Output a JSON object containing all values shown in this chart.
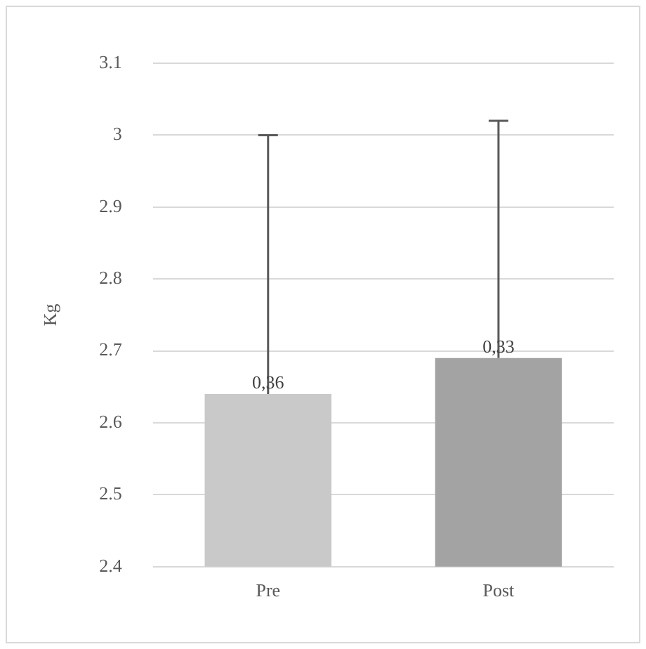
{
  "chart_data": {
    "type": "bar",
    "ylabel": "Kg",
    "categories": [
      "Pre",
      "Post"
    ],
    "values": [
      2.64,
      2.69
    ],
    "colors": [
      "#c9c9c9",
      "#a3a3a3"
    ],
    "errors": [
      [
        2.64,
        3.0
      ],
      [
        2.69,
        3.02
      ]
    ],
    "annotations": [
      {
        "text": "0,36",
        "x": "Pre",
        "y": 2.64
      },
      {
        "text": "0,33",
        "x": "Post",
        "y": 2.69
      }
    ],
    "ylim": [
      2.4,
      3.1
    ],
    "yticks": [
      2.4,
      2.5,
      2.6,
      2.7,
      2.8,
      2.9,
      3,
      3.1
    ],
    "grid": "y",
    "legend": false
  }
}
